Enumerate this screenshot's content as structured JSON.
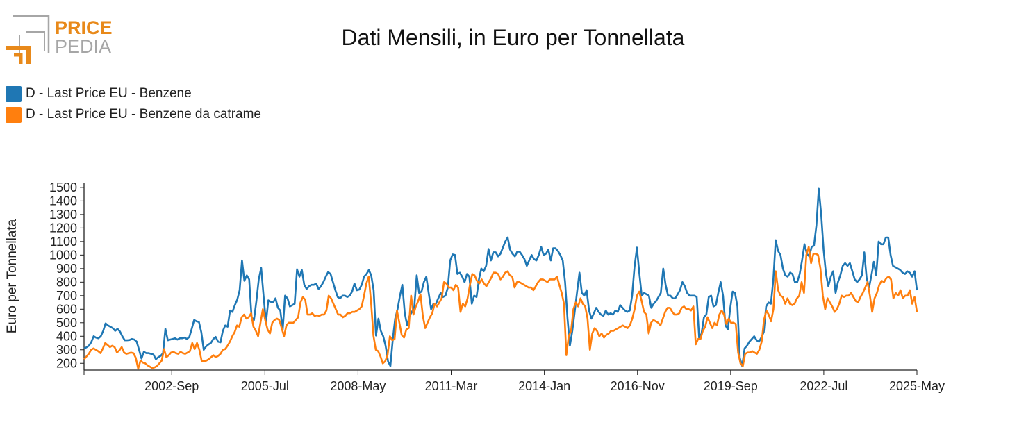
{
  "logo": {
    "line1": "PRICE",
    "line2": "PEDIA",
    "accent_color": "#e8891a",
    "gray_color": "#a6a6a6"
  },
  "chart_data": {
    "type": "line",
    "title": "Dati Mensili, in Euro per Tonnellata",
    "ylabel": "Euro per Tonnellata",
    "xlabel": "",
    "ylim": [
      150,
      1520
    ],
    "yticks": [
      200,
      300,
      400,
      500,
      600,
      700,
      800,
      900,
      1000,
      1100,
      1200,
      1300,
      1400,
      1500
    ],
    "x_start": "2000-Jan",
    "x_end": "2025-May",
    "x_tick_labels": [
      "2002-Sep",
      "2005-Jul",
      "2008-May",
      "2011-Mar",
      "2014-Jan",
      "2016-Nov",
      "2019-Sep",
      "2022-Jul",
      "2025-May"
    ],
    "legend_position": "top-left",
    "grid": false,
    "series": [
      {
        "name": "D - Last Price EU - Benzene",
        "color": "#1f77b4",
        "values": [
          310,
          318,
          330,
          355,
          400,
          390,
          385,
          400,
          440,
          495,
          480,
          470,
          460,
          440,
          455,
          435,
          400,
          370,
          370,
          372,
          380,
          375,
          360,
          300,
          235,
          285,
          275,
          275,
          270,
          265,
          230,
          245,
          255,
          275,
          455,
          370,
          375,
          380,
          385,
          375,
          385,
          385,
          390,
          380,
          395,
          455,
          520,
          510,
          505,
          430,
          300,
          325,
          340,
          350,
          380,
          395,
          360,
          355,
          440,
          480,
          470,
          590,
          580,
          630,
          670,
          740,
          960,
          810,
          850,
          820,
          540,
          520,
          660,
          820,
          905,
          700,
          500,
          665,
          655,
          650,
          680,
          610,
          590,
          450,
          700,
          680,
          620,
          630,
          640,
          895,
          840,
          890,
          780,
          750,
          770,
          780,
          780,
          790,
          750,
          770,
          800,
          840,
          875,
          860,
          800,
          740,
          690,
          680,
          700,
          700,
          690,
          700,
          730,
          790,
          740,
          745,
          780,
          840,
          860,
          890,
          850,
          740,
          405,
          530,
          440,
          400,
          330,
          215,
          180,
          380,
          530,
          600,
          700,
          780,
          570,
          480,
          550,
          580,
          620,
          850,
          720,
          730,
          800,
          840,
          720,
          600,
          640,
          640,
          680,
          720,
          690,
          700,
          760,
          960,
          1005,
          1000,
          860,
          870,
          840,
          800,
          860,
          840,
          640,
          700,
          690,
          820,
          900,
          880,
          920,
          1045,
          960,
          1020,
          1020,
          990,
          1010,
          1055,
          1100,
          1130,
          1040,
          1010,
          990,
          1025,
          1025,
          1000,
          970,
          920,
          960,
          1000,
          970,
          960,
          1000,
          1060,
          1000,
          1010,
          1040,
          960,
          1050,
          1050,
          1030,
          1000,
          960,
          800,
          530,
          330,
          440,
          580,
          730,
          870,
          720,
          700,
          740,
          590,
          530,
          570,
          610,
          580,
          560,
          550,
          590,
          560,
          570,
          560,
          590,
          580,
          630,
          610,
          590,
          580,
          590,
          700,
          910,
          1055,
          870,
          700,
          720,
          710,
          700,
          610,
          640,
          660,
          690,
          720,
          900,
          780,
          700,
          700,
          680,
          680,
          710,
          740,
          800,
          770,
          720,
          700,
          700,
          700,
          690,
          385,
          420,
          540,
          560,
          690,
          700,
          620,
          630,
          720,
          800,
          700,
          480,
          450,
          610,
          730,
          720,
          620,
          240,
          180,
          310,
          330,
          360,
          380,
          400,
          370,
          360,
          390,
          430,
          620,
          650,
          640,
          820,
          1110,
          1030,
          1000,
          900,
          850,
          840,
          870,
          860,
          800,
          800,
          860,
          960,
          1080,
          1010,
          990,
          1060,
          1070,
          1220,
          1490,
          1300,
          1040,
          860,
          770,
          840,
          880,
          720,
          800,
          850,
          920,
          940,
          920,
          940,
          880,
          820,
          800,
          820,
          850,
          1020,
          830,
          760,
          850,
          950,
          850,
          1100,
          1080,
          1080,
          1130,
          1130,
          1000,
          920,
          910,
          900,
          890,
          870,
          860,
          880,
          870,
          840,
          880,
          740
        ]
      },
      {
        "name": "D - Last Price EU - Benzene da catrame",
        "color": "#ff7f0e",
        "values": [
          230,
          250,
          270,
          300,
          310,
          300,
          290,
          275,
          310,
          350,
          335,
          320,
          330,
          320,
          280,
          295,
          320,
          280,
          270,
          275,
          280,
          275,
          240,
          160,
          220,
          205,
          200,
          185,
          175,
          165,
          170,
          180,
          200,
          220,
          305,
          245,
          260,
          280,
          285,
          275,
          270,
          285,
          275,
          270,
          280,
          290,
          350,
          305,
          350,
          300,
          215,
          215,
          220,
          230,
          245,
          260,
          245,
          255,
          270,
          300,
          305,
          330,
          360,
          400,
          430,
          480,
          470,
          540,
          560,
          530,
          540,
          570,
          470,
          440,
          400,
          500,
          600,
          520,
          450,
          420,
          500,
          520,
          530,
          520,
          460,
          400,
          480,
          500,
          500,
          500,
          520,
          540,
          650,
          690,
          670,
          560,
          560,
          570,
          550,
          555,
          550,
          560,
          560,
          590,
          700,
          680,
          640,
          600,
          560,
          560,
          540,
          550,
          570,
          570,
          580,
          580,
          590,
          600,
          620,
          700,
          790,
          840,
          650,
          405,
          300,
          290,
          250,
          200,
          215,
          260,
          400,
          370,
          380,
          590,
          500,
          410,
          390,
          450,
          460,
          700,
          560,
          620,
          660,
          710,
          550,
          460,
          500,
          540,
          570,
          640,
          620,
          650,
          680,
          800,
          790,
          760,
          760,
          740,
          780,
          760,
          580,
          640,
          620,
          680,
          780,
          860,
          850,
          810,
          790,
          820,
          790,
          770,
          800,
          830,
          870,
          870,
          860,
          820,
          840,
          870,
          880,
          850,
          840,
          760,
          800,
          800,
          790,
          780,
          770,
          760,
          760,
          740,
          770,
          800,
          820,
          820,
          810,
          800,
          820,
          820,
          820,
          840,
          780,
          720,
          640,
          260,
          400,
          440,
          600,
          650,
          620,
          680,
          640,
          620,
          530,
          300,
          420,
          460,
          440,
          400,
          420,
          390,
          410,
          420,
          440,
          440,
          450,
          460,
          470,
          480,
          470,
          460,
          480,
          530,
          600,
          700,
          730,
          660,
          580,
          560,
          420,
          500,
          520,
          510,
          500,
          480,
          530,
          580,
          610,
          610,
          580,
          560,
          560,
          570,
          610,
          620,
          600,
          600,
          590,
          620,
          340,
          380,
          380,
          440,
          470,
          540,
          500,
          460,
          500,
          480,
          560,
          590,
          560,
          490,
          530,
          500,
          500,
          490,
          280,
          200,
          180,
          270,
          280,
          280,
          290,
          280,
          270,
          300,
          360,
          520,
          590,
          560,
          510,
          600,
          880,
          740,
          700,
          690,
          640,
          680,
          640,
          630,
          640,
          680,
          700,
          800,
          720,
          1000,
          1060,
          940,
          1010,
          1010,
          1000,
          900,
          700,
          600,
          680,
          650,
          620,
          580,
          600,
          640,
          700,
          690,
          700,
          700,
          720,
          690,
          660,
          650,
          690,
          720,
          760,
          800,
          700,
          580,
          680,
          720,
          780,
          810,
          800,
          830,
          840,
          820,
          680,
          720,
          700,
          740,
          680,
          700,
          700,
          740,
          640,
          690,
          580
        ]
      }
    ]
  }
}
